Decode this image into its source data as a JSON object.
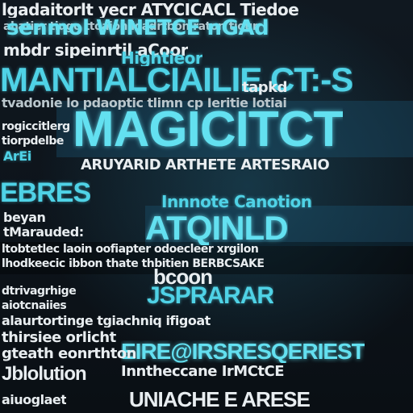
{
  "rows": [
    {
      "text": "lgadaitorlt yecr ATYCICACL Tiedoe"
    },
    {
      "text": "senmol WINETCE nGAd"
    },
    {
      "text": "mbdr sipeinrtil aCoor"
    },
    {
      "text": "MANTIALCIAILIE CT:-S"
    },
    {
      "text": "tapkd"
    },
    {
      "text": "MAGICITCT"
    },
    {
      "text": "ArEi"
    },
    {
      "text": "ARUYARID ARTHETE ARTESRAIO"
    },
    {
      "text": "EBRES"
    },
    {
      "text": "Innnote Canotion"
    },
    {
      "text": "ATQINLD"
    },
    {
      "text": "bcoon"
    },
    {
      "text": "JSPRARAR"
    },
    {
      "text": "EIRE@IRSRESQERIEST"
    },
    {
      "text": "Jblolution"
    },
    {
      "text": "UNIACHE E ARESE"
    }
  ]
}
